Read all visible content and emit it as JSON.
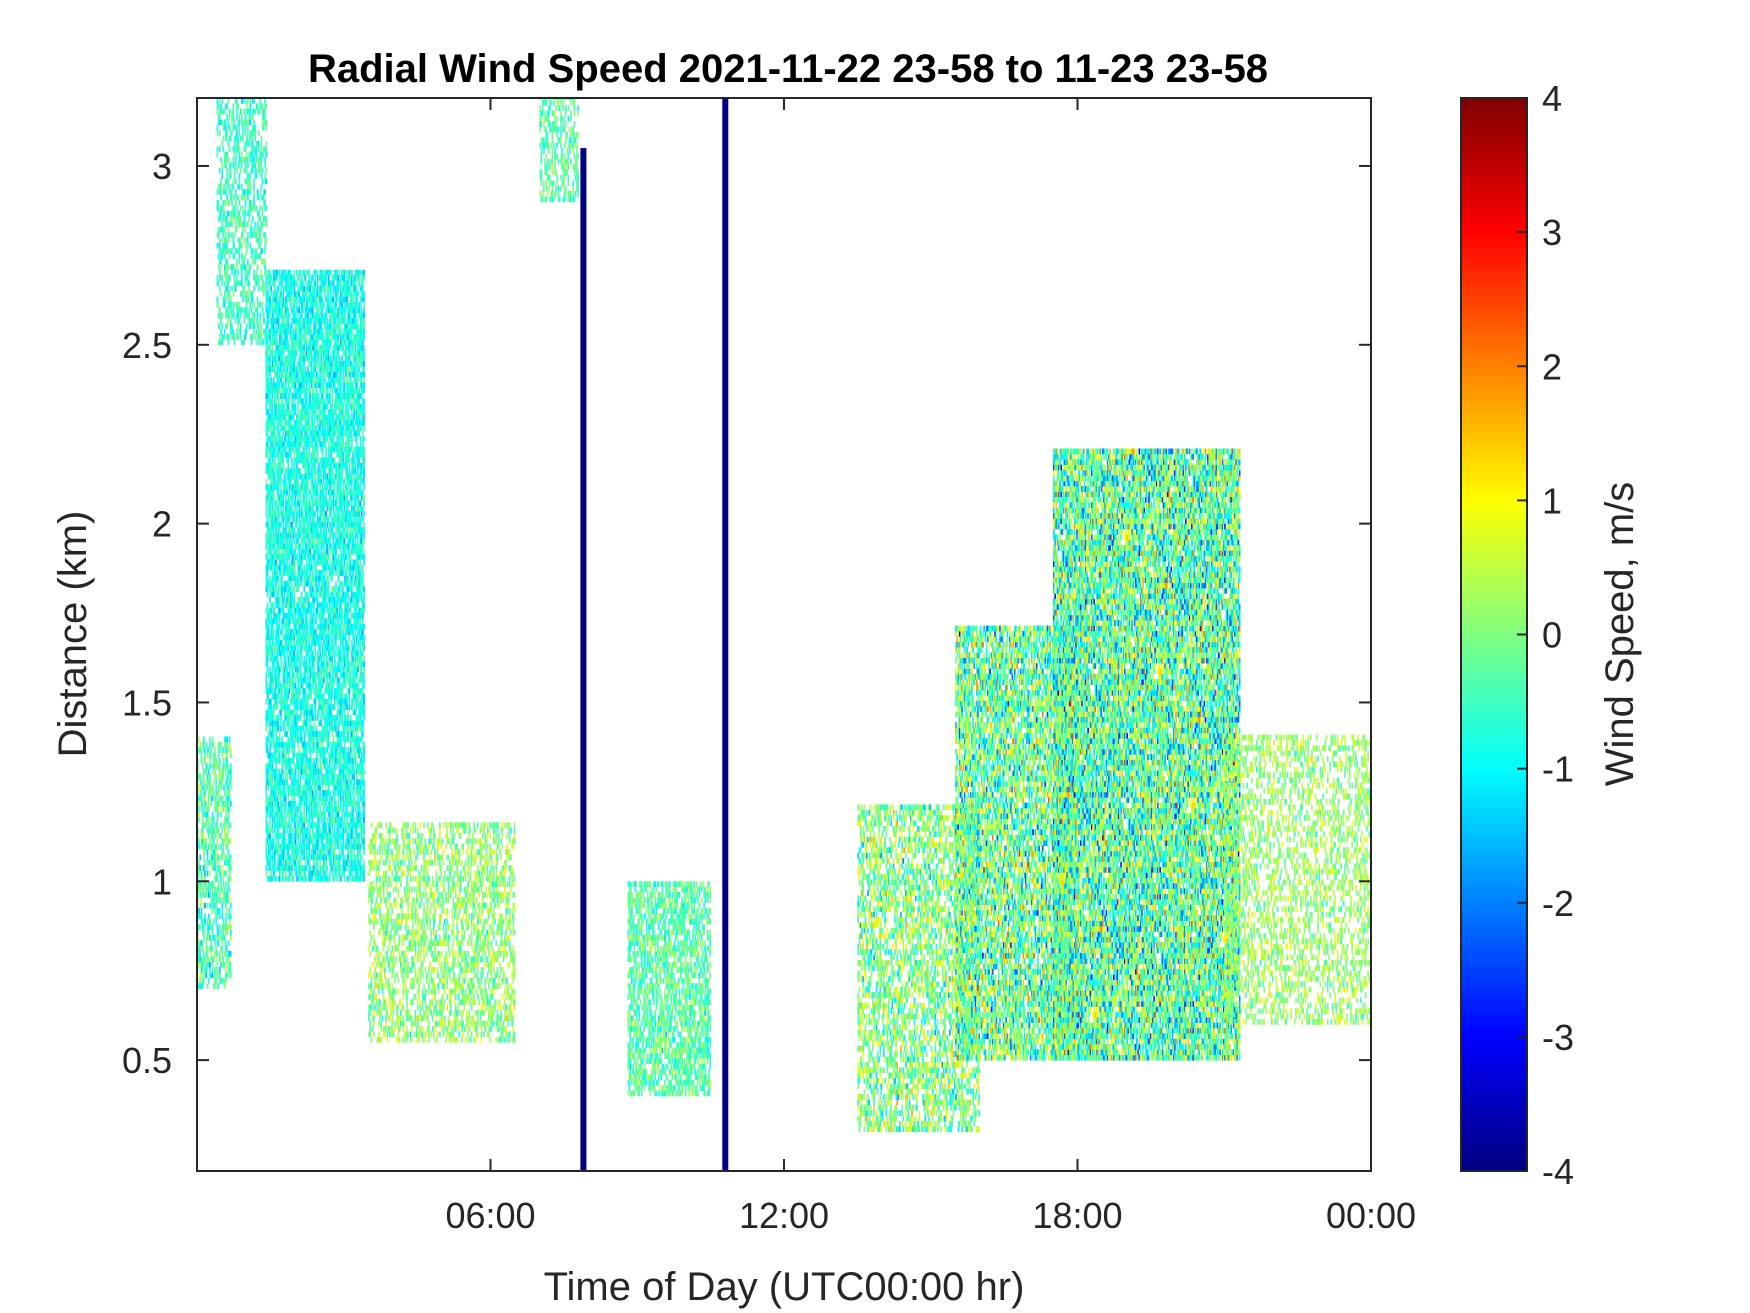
{
  "chart_data": {
    "type": "heatmap",
    "title": "Radial Wind Speed 2021-11-22 23-58 to 11-23 23-58",
    "xlabel": "Time of Day (UTC00:00 hr)",
    "ylabel": "Distance (km)",
    "colorbar_label": "Wind Speed, m/s",
    "xlim": [
      0,
      24
    ],
    "ylim": [
      0.19,
      3.19
    ],
    "clim": [
      -4,
      4
    ],
    "colormap": "jet",
    "x_ticks": [
      {
        "value": 6,
        "label": "06:00"
      },
      {
        "value": 12,
        "label": "12:00"
      },
      {
        "value": 18,
        "label": "18:00"
      },
      {
        "value": 24,
        "label": "00:00"
      }
    ],
    "y_ticks": [
      {
        "value": 0.5,
        "label": "0.5"
      },
      {
        "value": 1,
        "label": "1"
      },
      {
        "value": 1.5,
        "label": "1.5"
      },
      {
        "value": 2,
        "label": "2"
      },
      {
        "value": 2.5,
        "label": "2.5"
      },
      {
        "value": 3,
        "label": "3"
      }
    ],
    "colorbar_ticks": [
      {
        "value": 4,
        "label": "4"
      },
      {
        "value": 3,
        "label": "3"
      },
      {
        "value": 2,
        "label": "2"
      },
      {
        "value": 1,
        "label": "1"
      },
      {
        "value": 0,
        "label": "0"
      },
      {
        "value": -1,
        "label": "-1"
      },
      {
        "value": -2,
        "label": "-2"
      },
      {
        "value": -3,
        "label": "-3"
      },
      {
        "value": -4,
        "label": "-4"
      }
    ],
    "grid": false,
    "data_regions": [
      {
        "t_start": 0.0,
        "t_end": 0.7,
        "d_min": 0.7,
        "d_max": 1.4,
        "mean": -0.4,
        "spread": 0.7,
        "density": 0.55
      },
      {
        "t_start": 0.4,
        "t_end": 1.4,
        "d_min": 2.5,
        "d_max": 3.19,
        "mean": -0.5,
        "spread": 0.5,
        "density": 0.45
      },
      {
        "t_start": 1.4,
        "t_end": 3.4,
        "d_min": 1.0,
        "d_max": 2.7,
        "mean": -0.8,
        "spread": 0.5,
        "density": 0.75
      },
      {
        "t_start": 3.5,
        "t_end": 6.5,
        "d_min": 0.55,
        "d_max": 1.15,
        "mean": 0.1,
        "spread": 0.7,
        "density": 0.45
      },
      {
        "t_start": 7.0,
        "t_end": 7.8,
        "d_min": 2.9,
        "d_max": 3.19,
        "mean": -0.3,
        "spread": 0.5,
        "density": 0.45
      },
      {
        "t_start": 8.8,
        "t_end": 10.5,
        "d_min": 0.4,
        "d_max": 1.0,
        "mean": -0.3,
        "spread": 0.6,
        "density": 0.6
      },
      {
        "t_start": 13.5,
        "t_end": 16.0,
        "d_min": 0.3,
        "d_max": 1.2,
        "mean": 0.0,
        "spread": 1.0,
        "density": 0.5
      },
      {
        "t_start": 15.5,
        "t_end": 18.0,
        "d_min": 0.5,
        "d_max": 1.7,
        "mean": -0.2,
        "spread": 1.4,
        "density": 0.7
      },
      {
        "t_start": 17.5,
        "t_end": 21.3,
        "d_min": 0.5,
        "d_max": 2.2,
        "mean": -0.3,
        "spread": 1.5,
        "density": 0.8
      },
      {
        "t_start": 21.0,
        "t_end": 24.0,
        "d_min": 0.6,
        "d_max": 1.4,
        "mean": 0.2,
        "spread": 0.6,
        "density": 0.35
      }
    ],
    "vertical_bands": [
      {
        "t": 7.9,
        "d_min": 0.19,
        "d_max": 3.05,
        "value": -4
      },
      {
        "t": 10.8,
        "d_min": 0.19,
        "d_max": 3.19,
        "value": -4
      }
    ]
  }
}
